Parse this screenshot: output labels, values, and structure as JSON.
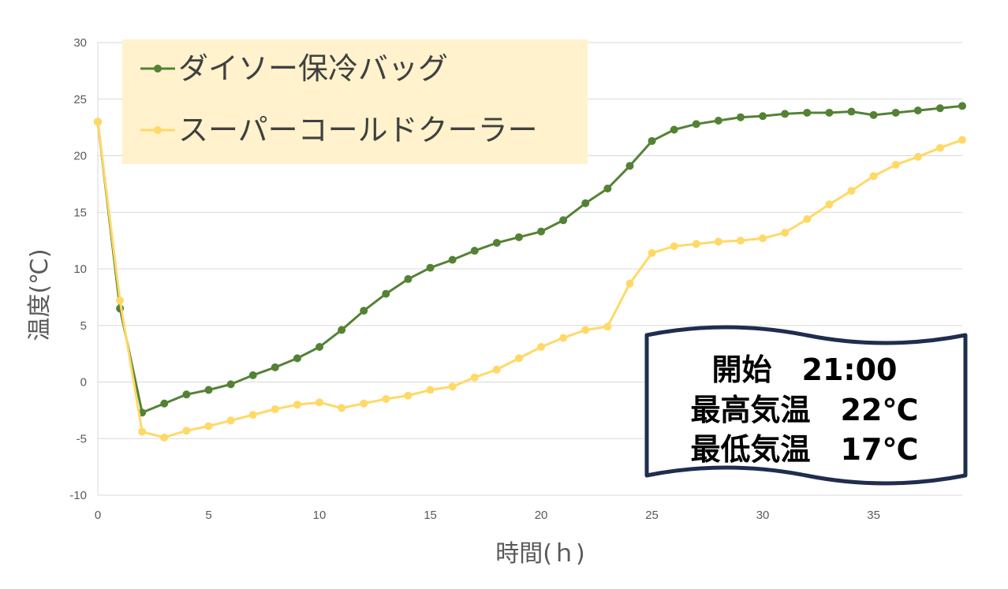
{
  "chart_data": {
    "type": "line",
    "xlabel": "時間(ｈ)",
    "ylabel": "温度(℃)",
    "xlim": [
      0,
      39
    ],
    "ylim": [
      -10,
      30
    ],
    "xticks": [
      0,
      5,
      10,
      15,
      20,
      25,
      30,
      35
    ],
    "yticks": [
      -10,
      -5,
      0,
      5,
      10,
      15,
      20,
      25,
      30
    ],
    "grid": "horizontal",
    "legend_position": "top-left",
    "x": [
      0,
      1,
      2,
      3,
      4,
      5,
      6,
      7,
      8,
      9,
      10,
      11,
      12,
      13,
      14,
      15,
      16,
      17,
      18,
      19,
      20,
      21,
      22,
      23,
      24,
      25,
      26,
      27,
      28,
      29,
      30,
      31,
      32,
      33,
      34,
      35,
      36,
      37,
      38,
      39
    ],
    "series": [
      {
        "name": "ダイソー保冷バッグ",
        "color": "#548235",
        "values": [
          23,
          6.5,
          -2.7,
          -1.9,
          -1.1,
          -0.7,
          -0.2,
          0.6,
          1.3,
          2.1,
          3.1,
          4.6,
          6.3,
          7.8,
          9.1,
          10.1,
          10.8,
          11.6,
          12.3,
          12.8,
          13.3,
          14.3,
          15.8,
          17.1,
          19.1,
          21.3,
          22.3,
          22.8,
          23.1,
          23.4,
          23.5,
          23.7,
          23.8,
          23.8,
          23.9,
          23.6,
          23.8,
          24.0,
          24.2,
          24.4
        ]
      },
      {
        "name": "スーパーコールドクーラー",
        "color": "#FFD966",
        "values": [
          23,
          7.2,
          -4.4,
          -4.9,
          -4.3,
          -3.9,
          -3.4,
          -2.9,
          -2.4,
          -2.0,
          -1.8,
          -2.3,
          -1.9,
          -1.5,
          -1.2,
          -0.7,
          -0.4,
          0.4,
          1.1,
          2.1,
          3.1,
          3.9,
          4.6,
          4.9,
          8.7,
          11.4,
          12.0,
          12.2,
          12.4,
          12.5,
          12.7,
          13.2,
          14.4,
          15.7,
          16.9,
          18.2,
          19.2,
          19.9,
          20.7,
          21.4
        ]
      }
    ],
    "annotation": {
      "lines": [
        "開始　21:00",
        "最高気温　22℃",
        "最低気温　17℃"
      ]
    }
  },
  "colors": {
    "grid": "#d9d9d9",
    "legend_bg": "#FFF2CC",
    "box_border": "#1F2D4E"
  }
}
